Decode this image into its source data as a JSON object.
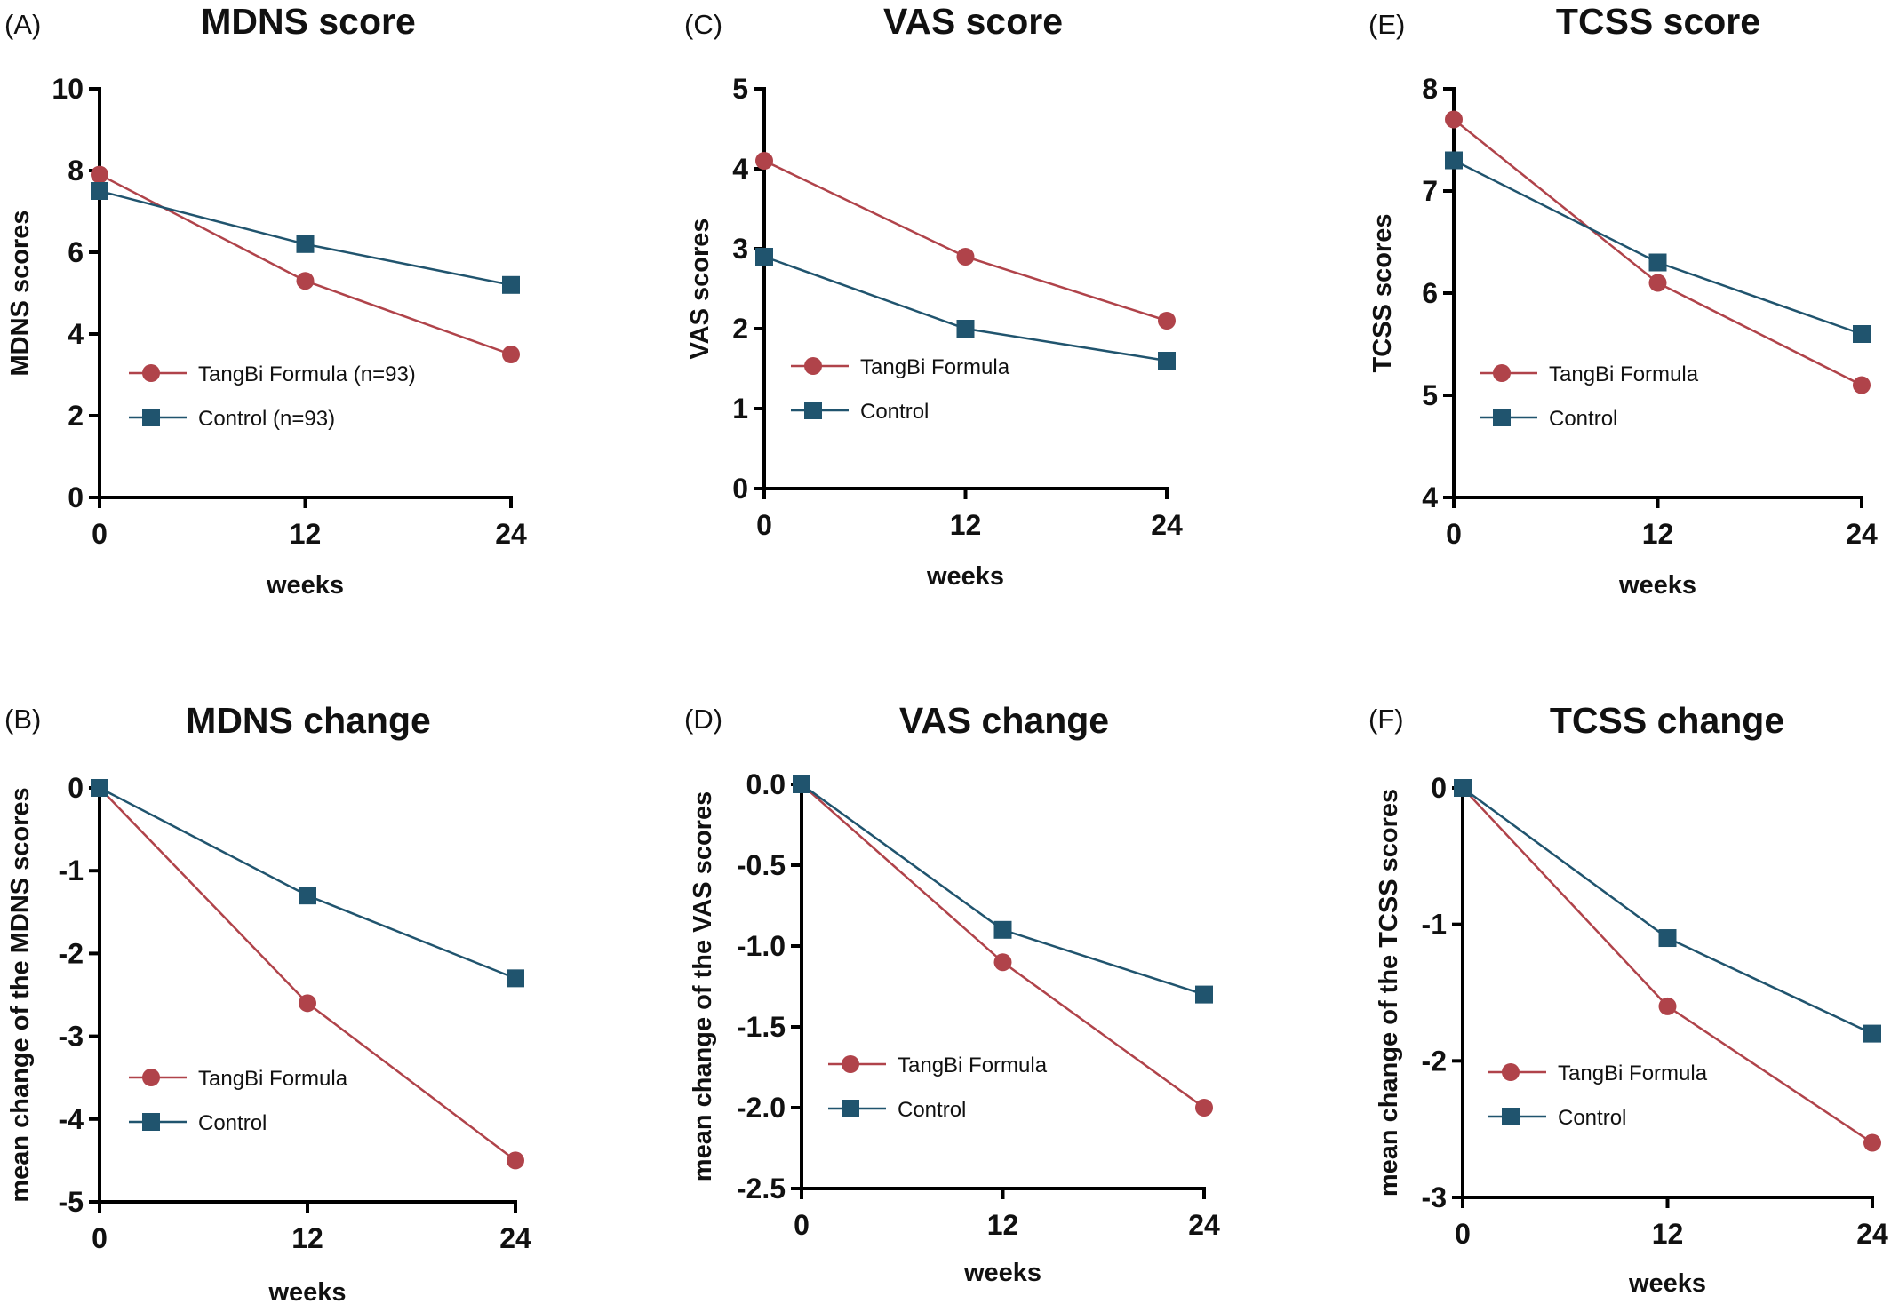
{
  "colors": {
    "tangbi": "#b0434a",
    "control": "#20546e"
  },
  "chart_data": [
    {
      "id": "A",
      "panel_label": "(A)",
      "title": "MDNS score",
      "type": "line",
      "x": [
        0,
        12,
        24
      ],
      "xticks": [
        "0",
        "12",
        "24"
      ],
      "xlabel": "weeks",
      "xlim": [
        0,
        24
      ],
      "ylabel": "MDNS scores",
      "ylim": [
        0,
        10
      ],
      "yticks": [
        0,
        2,
        4,
        6,
        8,
        10
      ],
      "yticklabels": [
        "0",
        "2",
        "4",
        "6",
        "8",
        "10"
      ],
      "series": [
        {
          "name": "TangBi Formula (n=93)",
          "values": [
            7.9,
            5.3,
            3.5
          ],
          "marker": "circle",
          "color": "#b0434a"
        },
        {
          "name": "Control (n=93)",
          "values": [
            7.5,
            6.2,
            5.2
          ],
          "marker": "square",
          "color": "#20546e"
        }
      ]
    },
    {
      "id": "B",
      "panel_label": "(B)",
      "title": "MDNS change",
      "type": "line",
      "x": [
        0,
        12,
        24
      ],
      "xticks": [
        "0",
        "12",
        "24"
      ],
      "xlabel": "weeks",
      "xlim": [
        0,
        24
      ],
      "ylabel": "mean change of the MDNS scores",
      "ylim": [
        -5,
        0
      ],
      "yticks": [
        0,
        -1,
        -2,
        -3,
        -4,
        -5
      ],
      "yticklabels": [
        "0",
        "-1",
        "-2",
        "-3",
        "-4",
        "-5"
      ],
      "series": [
        {
          "name": "TangBi Formula",
          "values": [
            0,
            -2.6,
            -4.5
          ],
          "marker": "circle",
          "color": "#b0434a"
        },
        {
          "name": "Control",
          "values": [
            0,
            -1.3,
            -2.3
          ],
          "marker": "square",
          "color": "#20546e"
        }
      ]
    },
    {
      "id": "C",
      "panel_label": "(C)",
      "title": "VAS score",
      "type": "line",
      "x": [
        0,
        12,
        24
      ],
      "xticks": [
        "0",
        "12",
        "24"
      ],
      "xlabel": "weeks",
      "xlim": [
        0,
        24
      ],
      "ylabel": "VAS scores",
      "ylim": [
        0,
        5
      ],
      "yticks": [
        0,
        1,
        2,
        3,
        4,
        5
      ],
      "yticklabels": [
        "0",
        "1",
        "2",
        "3",
        "4",
        "5"
      ],
      "series": [
        {
          "name": "TangBi Formula",
          "values": [
            4.1,
            2.9,
            2.1
          ],
          "marker": "circle",
          "color": "#b0434a"
        },
        {
          "name": "Control",
          "values": [
            2.9,
            2.0,
            1.6
          ],
          "marker": "square",
          "color": "#20546e"
        }
      ]
    },
    {
      "id": "D",
      "panel_label": "(D)",
      "title": "VAS change",
      "type": "line",
      "x": [
        0,
        12,
        24
      ],
      "xticks": [
        "0",
        "12",
        "24"
      ],
      "xlabel": "weeks",
      "xlim": [
        0,
        24
      ],
      "ylabel": "mean change of the VAS scores",
      "ylim": [
        -2.5,
        0
      ],
      "yticks": [
        0,
        -0.5,
        -1,
        -1.5,
        -2,
        -2.5
      ],
      "yticklabels": [
        "0.0",
        "-0.5",
        "-1.0",
        "-1.5",
        "-2.0",
        "-2.5"
      ],
      "series": [
        {
          "name": "TangBi Formula",
          "values": [
            0,
            -1.1,
            -2.0
          ],
          "marker": "circle",
          "color": "#b0434a"
        },
        {
          "name": "Control",
          "values": [
            0,
            -0.9,
            -1.3
          ],
          "marker": "square",
          "color": "#20546e"
        }
      ]
    },
    {
      "id": "E",
      "panel_label": "(E)",
      "title": "TCSS score",
      "type": "line",
      "x": [
        0,
        12,
        24
      ],
      "xticks": [
        "0",
        "12",
        "24"
      ],
      "xlabel": "weeks",
      "xlim": [
        0,
        24
      ],
      "ylabel": "TCSS scores",
      "ylim": [
        4,
        8
      ],
      "yticks": [
        4,
        5,
        6,
        7,
        8
      ],
      "yticklabels": [
        "4",
        "5",
        "6",
        "7",
        "8"
      ],
      "series": [
        {
          "name": "TangBi Formula",
          "values": [
            7.7,
            6.1,
            5.1
          ],
          "marker": "circle",
          "color": "#b0434a"
        },
        {
          "name": "Control",
          "values": [
            7.3,
            6.3,
            5.6
          ],
          "marker": "square",
          "color": "#20546e"
        }
      ]
    },
    {
      "id": "F",
      "panel_label": "(F)",
      "title": "TCSS change",
      "type": "line",
      "x": [
        0,
        12,
        24
      ],
      "xticks": [
        "0",
        "12",
        "24"
      ],
      "xlabel": "weeks",
      "xlim": [
        0,
        24
      ],
      "ylabel": "mean change of the TCSS scores",
      "ylim": [
        -3,
        0
      ],
      "yticks": [
        0,
        -1,
        -2,
        -3
      ],
      "yticklabels": [
        "0",
        "-1",
        "-2",
        "-3"
      ],
      "series": [
        {
          "name": "TangBi Formula",
          "values": [
            0,
            -1.6,
            -2.6
          ],
          "marker": "circle",
          "color": "#b0434a"
        },
        {
          "name": "Control",
          "values": [
            0,
            -1.1,
            -1.8
          ],
          "marker": "square",
          "color": "#20546e"
        }
      ]
    }
  ]
}
